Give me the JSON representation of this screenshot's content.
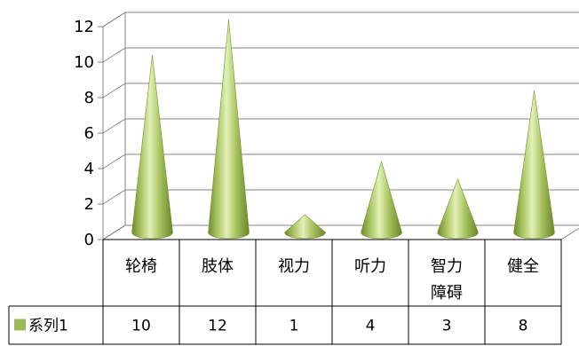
{
  "chart_data": {
    "type": "bar",
    "style": "3d-cone",
    "categories": [
      "轮椅",
      "肢体",
      "视力",
      "听力",
      "智力障碍",
      "健全"
    ],
    "category_lines": [
      [
        "轮椅"
      ],
      [
        "肢体"
      ],
      [
        "视力"
      ],
      [
        "听力"
      ],
      [
        "智力",
        "障碍"
      ],
      [
        "健全"
      ]
    ],
    "series": [
      {
        "name": "系列1",
        "values": [
          10,
          12,
          1,
          4,
          3,
          8
        ],
        "color": "#9bbb59"
      }
    ],
    "ylim": [
      0,
      12
    ],
    "yticks": [
      0,
      2,
      4,
      6,
      8,
      10,
      12
    ],
    "grid": true,
    "data_table": true,
    "legend": "data-table-left"
  }
}
